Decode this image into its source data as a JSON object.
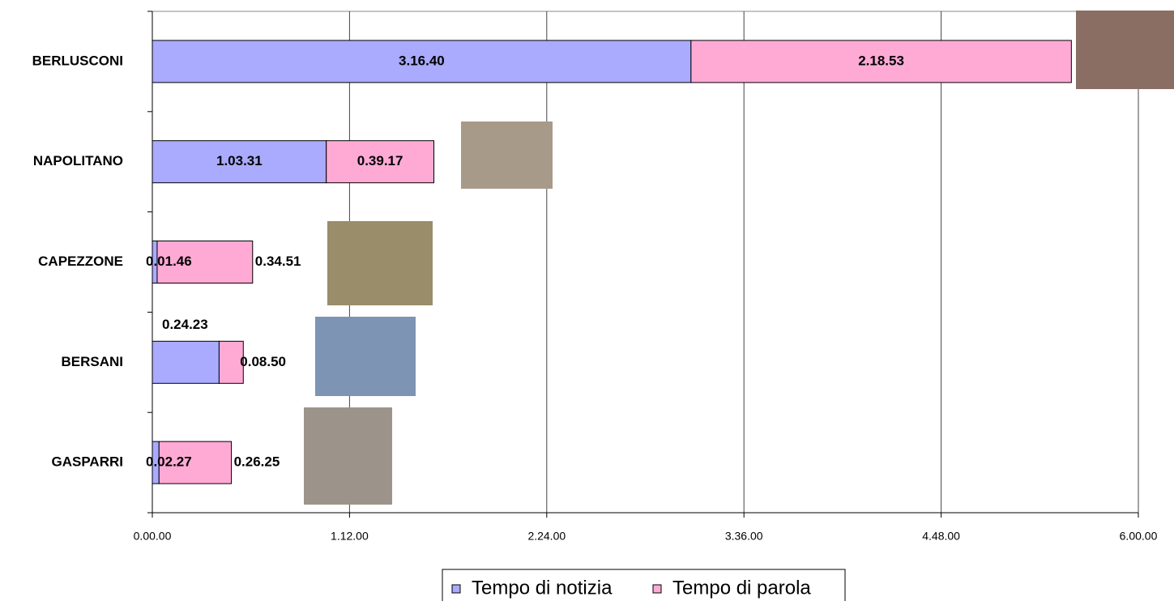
{
  "chart_data": {
    "type": "stacked-barh",
    "categories": [
      "BERLUSCONI",
      "NAPOLITANO",
      "CAPEZZONE",
      "BERSANI",
      "GASPARRI"
    ],
    "series": [
      {
        "name": "Tempo di notizia",
        "color": "#aaaaff",
        "values": [
          11800,
          3811,
          106,
          1463,
          147
        ],
        "value_labels": [
          "3.16.40",
          "1.03.31",
          "0.01.46",
          "0.24.23",
          "0.02.27"
        ]
      },
      {
        "name": "Tempo di parola",
        "color": "#ffaad5",
        "values": [
          8333,
          2357,
          2091,
          530,
          1585
        ],
        "value_labels": [
          "2.18.53",
          "0.39.17",
          "0.34.51",
          "0.08.50",
          "0.26.25"
        ]
      }
    ],
    "xlim": [
      0,
      21600
    ],
    "xticks": [
      {
        "value": 0,
        "label": "0.00.00"
      },
      {
        "value": 4320,
        "label": "1.12.00"
      },
      {
        "value": 8640,
        "label": "2.24.00"
      },
      {
        "value": 12960,
        "label": "3.36.00"
      },
      {
        "value": 17280,
        "label": "4.48.00"
      },
      {
        "value": 21600,
        "label": "6.00.00"
      }
    ],
    "grid": true,
    "legend": "bottom"
  }
}
